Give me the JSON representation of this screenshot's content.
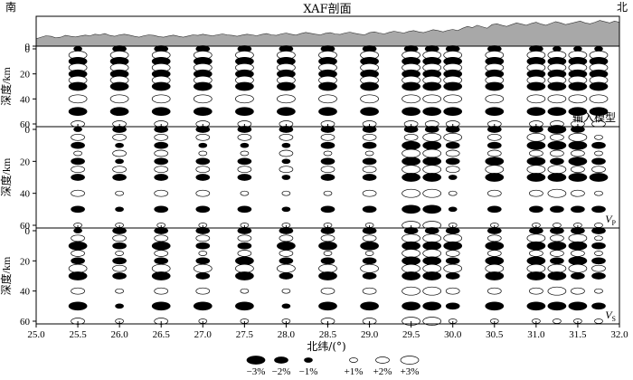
{
  "chart_data": {
    "type": "scatter",
    "title": "XAF剖面",
    "corner_left": "南",
    "corner_right": "北",
    "xlabel": "北纬/(°)",
    "ylabel": "深度/km",
    "xlim": [
      25.0,
      32.0
    ],
    "x_ticks": [
      "25.0",
      "25.5",
      "26.0",
      "26.5",
      "27.0",
      "27.5",
      "28.0",
      "28.5",
      "29.0",
      "29.5",
      "30.0",
      "30.5",
      "31.0",
      "31.5",
      "32.0"
    ],
    "topography": {
      "tick": "0",
      "fill_color": "#a8a8a8",
      "values": [
        0.25,
        0.3,
        0.35,
        0.33,
        0.28,
        0.3,
        0.36,
        0.33,
        0.31,
        0.34,
        0.37,
        0.35,
        0.4,
        0.38,
        0.42,
        0.36,
        0.33,
        0.38,
        0.4,
        0.37,
        0.33,
        0.3,
        0.35,
        0.38,
        0.36,
        0.32,
        0.3,
        0.34,
        0.37,
        0.33,
        0.3,
        0.34,
        0.38,
        0.36,
        0.4,
        0.37,
        0.35,
        0.38,
        0.41,
        0.38,
        0.36,
        0.33,
        0.37,
        0.4,
        0.38,
        0.35,
        0.39,
        0.42,
        0.38,
        0.36,
        0.41,
        0.44,
        0.4,
        0.37,
        0.42,
        0.46,
        0.43,
        0.4,
        0.38,
        0.43,
        0.45,
        0.41,
        0.39,
        0.44,
        0.47,
        0.43,
        0.4,
        0.38,
        0.45,
        0.48,
        0.44,
        0.41,
        0.46,
        0.5,
        0.47,
        0.44,
        0.49,
        0.52,
        0.48,
        0.45,
        0.5,
        0.55,
        0.52,
        0.48,
        0.53,
        0.56,
        0.52,
        0.6,
        0.66,
        0.62,
        0.7,
        0.65,
        0.6,
        0.72,
        0.75,
        0.7,
        0.66,
        0.72,
        0.78,
        0.74,
        0.7,
        0.76,
        0.8,
        0.74,
        0.7,
        0.76,
        0.82,
        0.78,
        0.72,
        0.76,
        0.8,
        0.84,
        0.78,
        0.75,
        0.8,
        0.86,
        0.82,
        0.78,
        0.84,
        0.8
      ]
    },
    "y_ticks": [
      "0",
      "20",
      "40",
      "60"
    ],
    "ylim": [
      0,
      60
    ],
    "x_positions": [
      25.5,
      26.0,
      26.5,
      27.0,
      27.5,
      28.0,
      28.5,
      29.0,
      29.5,
      29.75,
      30.0,
      30.5,
      31.0,
      31.25,
      31.5,
      31.75
    ],
    "depths": [
      0,
      5,
      10,
      15,
      20,
      25,
      30,
      40,
      50,
      60
    ],
    "panels": [
      {
        "label_main": "输入模型",
        "label_sub": "",
        "grid": [
          [
            -1,
            -2,
            -2,
            -2,
            -2,
            -2,
            -2,
            -2,
            -2,
            -2,
            -2,
            -2,
            -2,
            -1,
            -1,
            -1
          ],
          [
            3,
            3,
            3,
            3,
            3,
            3,
            3,
            3,
            3,
            3,
            3,
            3,
            3,
            3,
            3,
            3
          ],
          [
            -3,
            -3,
            -3,
            -3,
            -3,
            -3,
            -3,
            -3,
            -3,
            -3,
            -3,
            -3,
            -3,
            -3,
            -3,
            -3
          ],
          [
            3,
            3,
            3,
            3,
            3,
            3,
            3,
            3,
            3,
            3,
            3,
            3,
            3,
            3,
            3,
            3
          ],
          [
            -3,
            -3,
            -3,
            -3,
            -3,
            -3,
            -3,
            -3,
            -3,
            -3,
            -3,
            -3,
            -3,
            -3,
            -3,
            -3
          ],
          [
            3,
            3,
            3,
            3,
            3,
            3,
            3,
            3,
            3,
            3,
            3,
            3,
            3,
            3,
            3,
            3
          ],
          [
            -3,
            -3,
            -3,
            -3,
            -3,
            -3,
            -3,
            -3,
            -3,
            -3,
            -3,
            -3,
            -3,
            -3,
            -3,
            -3
          ],
          [
            3,
            3,
            3,
            3,
            3,
            3,
            3,
            3,
            3,
            3,
            3,
            3,
            3,
            3,
            3,
            3
          ],
          [
            -3,
            -3,
            -3,
            -3,
            -3,
            -3,
            -3,
            -3,
            -3,
            -3,
            -3,
            -3,
            -3,
            -3,
            -3,
            -3
          ],
          [
            2,
            2,
            2,
            2,
            2,
            2,
            2,
            2,
            2,
            2,
            2,
            2,
            2,
            2,
            2,
            2
          ]
        ]
      },
      {
        "label_main": "V",
        "label_sub": "P",
        "grid": [
          [
            -1,
            -2,
            -2,
            -2,
            -2,
            -2,
            -2,
            -2,
            -2,
            -2,
            -2,
            -2,
            -2,
            -3,
            -2,
            0
          ],
          [
            2,
            2,
            2,
            2,
            2,
            2,
            2,
            2,
            2,
            3,
            3,
            2,
            3,
            2,
            3,
            1
          ],
          [
            -2,
            -1,
            -2,
            -1,
            -1,
            -1,
            -2,
            -2,
            -3,
            -3,
            -2,
            -2,
            -3,
            -3,
            -3,
            -2
          ],
          [
            1,
            2,
            2,
            1,
            1,
            2,
            1,
            1,
            3,
            3,
            2,
            2,
            2,
            2,
            2,
            1
          ],
          [
            -2,
            -1,
            -2,
            -2,
            -2,
            -1,
            -2,
            -2,
            -3,
            -3,
            -2,
            -3,
            -3,
            -2,
            -3,
            -2
          ],
          [
            2,
            2,
            2,
            2,
            2,
            2,
            2,
            2,
            3,
            3,
            2,
            3,
            3,
            3,
            2,
            2
          ],
          [
            -2,
            -2,
            -2,
            -2,
            -2,
            -1,
            -2,
            -2,
            -3,
            -3,
            -1,
            -3,
            -3,
            -3,
            -3,
            -3
          ],
          [
            2,
            1,
            2,
            2,
            1,
            1,
            1,
            2,
            3,
            3,
            1,
            2,
            2,
            3,
            2,
            1
          ],
          [
            -2,
            -1,
            -2,
            -2,
            -2,
            -1,
            -2,
            -2,
            -3,
            -3,
            -1,
            -2,
            -2,
            -2,
            -2,
            -2
          ],
          [
            1,
            1,
            1,
            1,
            1,
            1,
            1,
            1,
            3,
            3,
            1,
            1,
            1,
            1,
            1,
            1
          ]
        ]
      },
      {
        "label_main": "V",
        "label_sub": "S",
        "grid": [
          [
            -1,
            -2,
            -2,
            -2,
            -2,
            -2,
            -2,
            -2,
            -2,
            -2,
            -2,
            -2,
            -2,
            -2,
            -2,
            -2
          ],
          [
            2,
            2,
            2,
            2,
            2,
            2,
            2,
            2,
            3,
            3,
            3,
            2,
            3,
            2,
            3,
            1
          ],
          [
            -3,
            -2,
            -3,
            -2,
            -2,
            -3,
            -3,
            -3,
            -3,
            -3,
            -3,
            -3,
            -3,
            -3,
            -3,
            -2
          ],
          [
            2,
            1,
            2,
            1,
            2,
            2,
            1,
            1,
            3,
            3,
            2,
            2,
            2,
            2,
            2,
            1
          ],
          [
            -2,
            -2,
            -2,
            -2,
            -3,
            -2,
            -2,
            -2,
            -3,
            -3,
            -2,
            -3,
            -3,
            -2,
            -3,
            -2
          ],
          [
            3,
            2,
            3,
            3,
            3,
            3,
            3,
            3,
            3,
            3,
            3,
            3,
            3,
            3,
            3,
            2
          ],
          [
            -3,
            -2,
            -3,
            -2,
            -3,
            -2,
            -3,
            -2,
            -3,
            -3,
            -2,
            -3,
            -3,
            -3,
            -2,
            -2
          ],
          [
            2,
            1,
            2,
            2,
            1,
            1,
            2,
            2,
            3,
            3,
            2,
            2,
            2,
            3,
            2,
            1
          ],
          [
            -3,
            -1,
            -3,
            -3,
            -3,
            -1,
            -3,
            -3,
            -3,
            -3,
            -2,
            -3,
            -3,
            -3,
            -3,
            -2
          ],
          [
            2,
            1,
            2,
            1,
            1,
            1,
            2,
            2,
            3,
            3,
            1,
            1,
            1,
            1,
            1,
            1
          ]
        ]
      }
    ],
    "legend": {
      "placement": "bottom-center",
      "negative": [
        "−3%",
        "−2%",
        "−1%"
      ],
      "positive": [
        "+1%",
        "+2%",
        "+3%"
      ]
    }
  }
}
